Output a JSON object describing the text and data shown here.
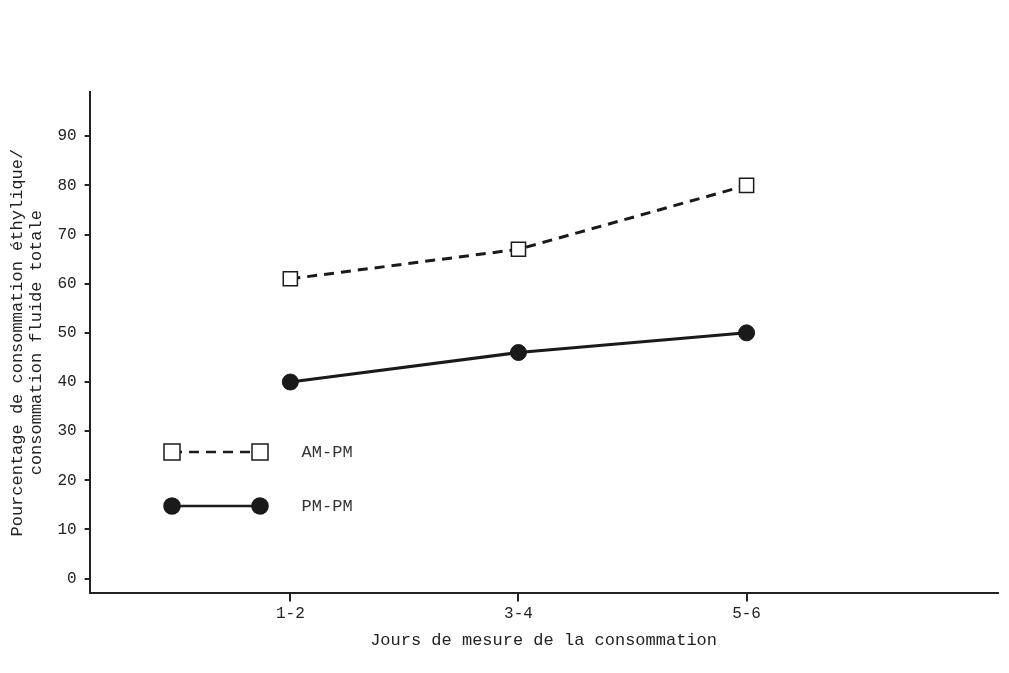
{
  "chart_data": {
    "type": "line",
    "xlabel": "Jours de mesure de la consommation",
    "ylabel": "Pourcentage de consommation éthylique/\nconsommation fluide totale",
    "categories": [
      "1-2",
      "3-4",
      "5-6"
    ],
    "ylim": [
      -3,
      99
    ],
    "yticks": [
      0,
      10,
      20,
      30,
      40,
      50,
      60,
      70,
      80,
      90
    ],
    "grid": false,
    "legend": "bottom left",
    "series": [
      {
        "name": "AM-PM",
        "color": "#1a1a1a",
        "marker": "square",
        "line_style": "dashed",
        "values": [
          61,
          67,
          80
        ]
      },
      {
        "name": "PM-PM",
        "color": "#1a1a1a",
        "marker": "circle",
        "line_style": "solid",
        "values": [
          40,
          46,
          50
        ]
      }
    ]
  }
}
